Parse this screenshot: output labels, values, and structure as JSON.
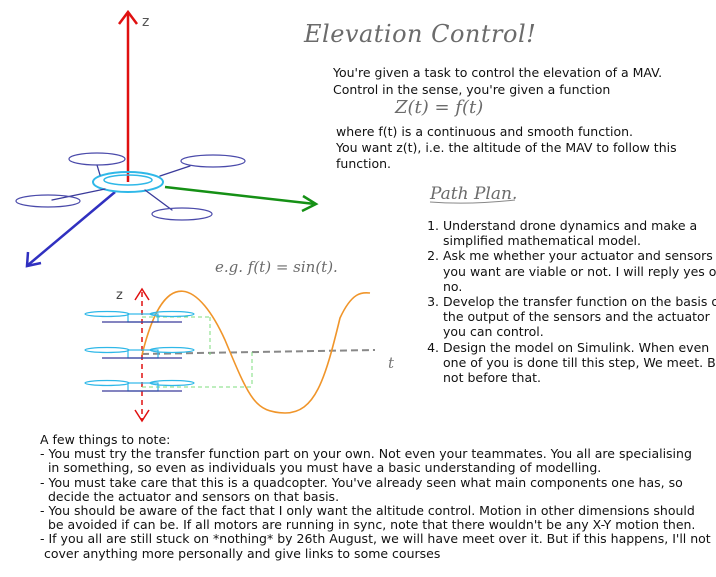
{
  "heading": {
    "title": "Elevation Control!"
  },
  "intro": {
    "line1": "You're given a task to control the elevation of a MAV.",
    "line2": "Control in the sense, you're given a function",
    "formula": "Z(t) = f(t)",
    "line3": "where f(t) is a continuous and smooth function.",
    "line4": "You want z(t), i.e. the altitude of the MAV to follow this function."
  },
  "diagram": {
    "axis_z_label": "z",
    "plot_z_label": "z",
    "plot_t_label": "t",
    "example_label": "e.g. f(t) = sin(t).",
    "colors": {
      "z_axis": "#e01010",
      "y_axis": "#159015",
      "x_axis": "#3030c0",
      "drone": "#2fb8e8",
      "curve": "#f0952a"
    }
  },
  "path_plan": {
    "title": "Path Plan.",
    "steps": [
      "Understand drone dynamics and make a simplified mathematical model.",
      "Ask me whether your actuator and sensors you want are viable or not. I will reply yes or no.",
      "Develop the transfer function on the basis of the output of the sensors and the actuator you can control.",
      "Design the model on Simulink. When even one of you is done till this step, We meet. But not before that."
    ]
  },
  "notes": {
    "heading": "A few things to note:",
    "items": [
      "- You must try the transfer function part on your own. Not even your teammates. You all are specialising\n  in something, so even as individuals you must have a basic understanding of modelling.",
      "- You must take care that this is a quadcopter. You've already seen what main components one has, so\n  decide the actuator and sensors on that basis.",
      "- You should be aware of the fact that I only want the altitude control. Motion in other dimensions should\n  be avoided if can be. If all motors are running in sync, note that there wouldn't be any X-Y motion then.",
      "- If you all are still stuck on *nothing* by 26th August, we will have meet over it. But if this happens, I'll not\n cover anything more personally and give links to some courses"
    ]
  }
}
